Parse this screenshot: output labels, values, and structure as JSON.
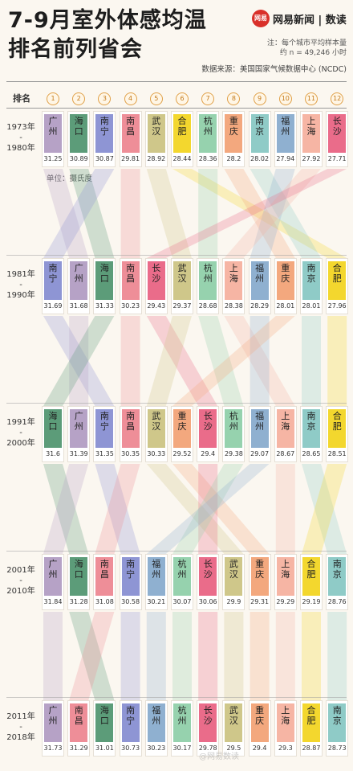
{
  "header": {
    "title_line1": "7-9月室外体感均温",
    "title_line2": "排名前列省会",
    "brand_logo_text": "网易",
    "brand_name": "网易新闻 | 数读",
    "note_line1": "注：每个城市平均样本量",
    "note_line2": "约 n = 49,246 小时",
    "source": "数据来源：美国国家气候数据中心 (NCDC)",
    "rank_label": "排名"
  },
  "unit_label": "单位：摄氏度",
  "watermark": "@网易数读",
  "chart_data": {
    "type": "bump",
    "title": "7-9月室外体感均温排名前列省会",
    "ranks": [
      1,
      2,
      3,
      4,
      5,
      6,
      7,
      8,
      9,
      10,
      11,
      12
    ],
    "cities": {
      "广州": "#b6a2c6",
      "海口": "#5c9c79",
      "南宁": "#8e95d4",
      "南昌": "#ee8e98",
      "武汉": "#cfc78a",
      "合肥": "#f3d72e",
      "杭州": "#96d2ae",
      "重庆": "#f3a87e",
      "南京": "#8fcbc7",
      "福州": "#8fb0d0",
      "上海": "#f6b5a4",
      "长沙": "#ea6c8a"
    },
    "periods": [
      {
        "label_line1": "1973年",
        "label_line2": "-",
        "label_line3": "1980年",
        "entries": [
          {
            "city": "广州",
            "value": 31.25
          },
          {
            "city": "海口",
            "value": 30.89
          },
          {
            "city": "南宁",
            "value": 30.87
          },
          {
            "city": "南昌",
            "value": 29.81
          },
          {
            "city": "武汉",
            "value": 28.92
          },
          {
            "city": "合肥",
            "value": 28.44
          },
          {
            "city": "杭州",
            "value": 28.36
          },
          {
            "city": "重庆",
            "value": 28.2
          },
          {
            "city": "南京",
            "value": 28.02
          },
          {
            "city": "福州",
            "value": 27.94
          },
          {
            "city": "上海",
            "value": 27.92
          },
          {
            "city": "长沙",
            "value": 27.71
          }
        ]
      },
      {
        "label_line1": "1981年",
        "label_line2": "-",
        "label_line3": "1990年",
        "entries": [
          {
            "city": "南宁",
            "value": 31.69
          },
          {
            "city": "广州",
            "value": 31.68
          },
          {
            "city": "海口",
            "value": 31.33
          },
          {
            "city": "南昌",
            "value": 30.23
          },
          {
            "city": "长沙",
            "value": 29.43
          },
          {
            "city": "武汉",
            "value": 29.37
          },
          {
            "city": "杭州",
            "value": 28.68
          },
          {
            "city": "上海",
            "value": 28.38
          },
          {
            "city": "福州",
            "value": 28.29
          },
          {
            "city": "重庆",
            "value": 28.01
          },
          {
            "city": "南京",
            "value": 28.01
          },
          {
            "city": "合肥",
            "value": 27.96
          }
        ]
      },
      {
        "label_line1": "1991年",
        "label_line2": "-",
        "label_line3": "2000年",
        "entries": [
          {
            "city": "海口",
            "value": 31.6
          },
          {
            "city": "广州",
            "value": 31.39
          },
          {
            "city": "南宁",
            "value": 31.35
          },
          {
            "city": "南昌",
            "value": 30.35
          },
          {
            "city": "武汉",
            "value": 30.33
          },
          {
            "city": "重庆",
            "value": 29.52
          },
          {
            "city": "长沙",
            "value": 29.4
          },
          {
            "city": "杭州",
            "value": 29.38
          },
          {
            "city": "福州",
            "value": 29.07
          },
          {
            "city": "上海",
            "value": 28.67
          },
          {
            "city": "南京",
            "value": 28.65
          },
          {
            "city": "合肥",
            "value": 28.51
          }
        ]
      },
      {
        "label_line1": "2001年",
        "label_line2": "-",
        "label_line3": "2010年",
        "entries": [
          {
            "city": "广州",
            "value": 31.84
          },
          {
            "city": "海口",
            "value": 31.28
          },
          {
            "city": "南昌",
            "value": 31.08
          },
          {
            "city": "南宁",
            "value": 30.58
          },
          {
            "city": "福州",
            "value": 30.21
          },
          {
            "city": "杭州",
            "value": 30.07
          },
          {
            "city": "长沙",
            "value": 30.06
          },
          {
            "city": "武汉",
            "value": 29.9
          },
          {
            "city": "重庆",
            "value": 29.31
          },
          {
            "city": "上海",
            "value": 29.29
          },
          {
            "city": "合肥",
            "value": 29.19
          },
          {
            "city": "南京",
            "value": 28.76
          }
        ]
      },
      {
        "label_line1": "2011年",
        "label_line2": "-",
        "label_line3": "2018年",
        "entries": [
          {
            "city": "广州",
            "value": 31.73
          },
          {
            "city": "南昌",
            "value": 31.29
          },
          {
            "city": "海口",
            "value": 31.01
          },
          {
            "city": "南宁",
            "value": 30.73
          },
          {
            "city": "福州",
            "value": 30.23
          },
          {
            "city": "杭州",
            "value": 30.17
          },
          {
            "city": "长沙",
            "value": 29.78
          },
          {
            "city": "武汉",
            "value": 29.5
          },
          {
            "city": "重庆",
            "value": 29.4
          },
          {
            "city": "上海",
            "value": 29.3
          },
          {
            "city": "合肥",
            "value": 28.87
          },
          {
            "city": "南京",
            "value": 28.73
          }
        ]
      }
    ]
  }
}
